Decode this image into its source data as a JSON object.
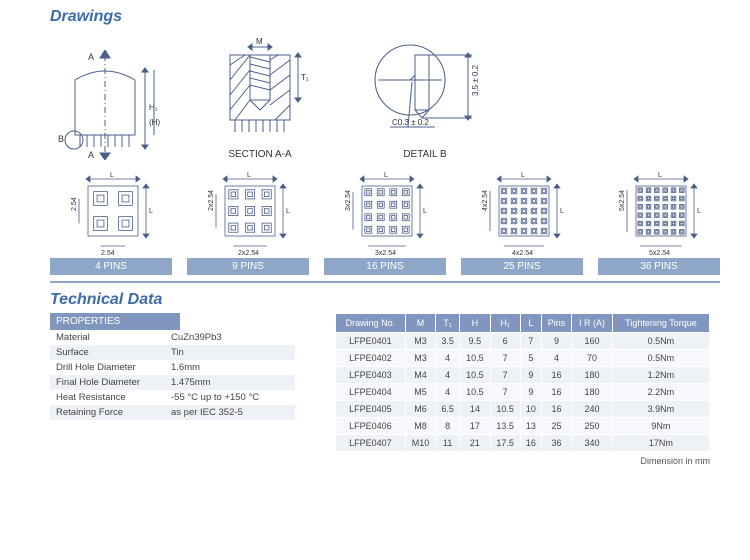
{
  "sections": {
    "drawings": "Drawings",
    "technical": "Technical Data"
  },
  "top_labels": {
    "section": "SECTION A-A",
    "detail": "DETAIL B"
  },
  "section_dims": {
    "m": "M",
    "t1": "T₁"
  },
  "detail_dims": {
    "h": "3.5 ± 0.2",
    "c": "C0.3 ± 0.2"
  },
  "variants": [
    {
      "label": "4 PINS",
      "grid": 2,
      "xdim": "2.54",
      "ydim": "2.54"
    },
    {
      "label": "9 PINS",
      "grid": 3,
      "xdim": "2x2.54",
      "ydim": "2x2.54"
    },
    {
      "label": "16 PINS",
      "grid": 4,
      "xdim": "3x2.54",
      "ydim": "3x2.54"
    },
    {
      "label": "25 PINS",
      "grid": 5,
      "xdim": "4x2.54",
      "ydim": "4x2.54"
    },
    {
      "label": "36 PINS",
      "grid": 6,
      "xdim": "5x2.54",
      "ydim": "5x2.54"
    }
  ],
  "variant_L": "L",
  "properties": {
    "header": "PROPERTIES",
    "rows": [
      [
        "Material",
        "CuZn39Pb3"
      ],
      [
        "Surface",
        "Tin"
      ],
      [
        "Drill Hole Diameter",
        "1.6mm"
      ],
      [
        "Final Hole Diameter",
        "1.475mm"
      ],
      [
        "Heat Resistance",
        "-55 °C up to +150 °C"
      ],
      [
        "Retaining Force",
        "as per IEC 352-5"
      ]
    ]
  },
  "data_table": {
    "headers": [
      "Drawing No.",
      "M",
      "T₁",
      "H",
      "H₁",
      "L",
      "Pins",
      "I R (A)",
      "Tightening Torque"
    ],
    "rows": [
      [
        "LFPE0401",
        "M3",
        "3.5",
        "9.5",
        "6",
        "7",
        "9",
        "160",
        "0.5Nm"
      ],
      [
        "LFPE0402",
        "M3",
        "4",
        "10.5",
        "7",
        "5",
        "4",
        "70",
        "0.5Nm"
      ],
      [
        "LFPE0403",
        "M4",
        "4",
        "10.5",
        "7",
        "9",
        "16",
        "180",
        "1.2Nm"
      ],
      [
        "LFPE0404",
        "M5",
        "4",
        "10.5",
        "7",
        "9",
        "16",
        "180",
        "2.2Nm"
      ],
      [
        "LFPE0405",
        "M6",
        "6.5",
        "14",
        "10.5",
        "10",
        "16",
        "240",
        "3.9Nm"
      ],
      [
        "LFPE0406",
        "M8",
        "8",
        "17",
        "13.5",
        "13",
        "25",
        "250",
        "9Nm"
      ],
      [
        "LFPE0407",
        "M10",
        "11",
        "21",
        "17.5",
        "16",
        "36",
        "340",
        "17Nm"
      ]
    ]
  },
  "dim_note": "Dimension in mm",
  "colors": {
    "title": "#3b6ca8",
    "stroke": "#4a5e8a",
    "bar": "#8ea7c9",
    "head": "#8196be",
    "row_alt": "#eef1f6"
  }
}
